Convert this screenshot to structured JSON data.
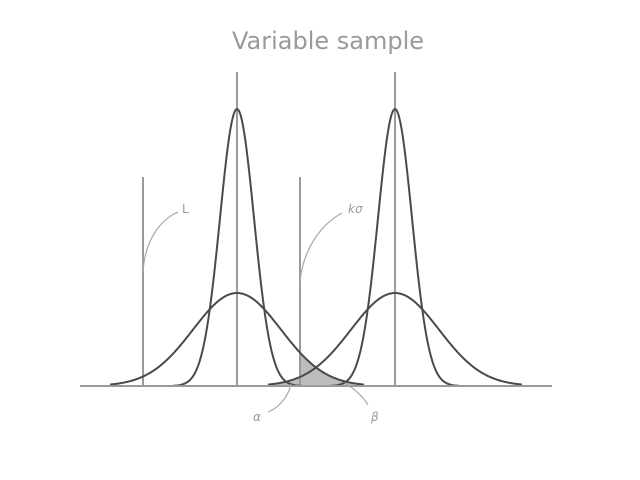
{
  "diagram": {
    "title": "Variable sample",
    "labels": {
      "lower_limit": "L",
      "k_sigma": "kσ",
      "alpha": "α",
      "beta": "β"
    },
    "colors": {
      "curve": "#4a4a4a",
      "lines": "#9a9a9a",
      "text": "#9a9a9a",
      "shaded_region": "#bdbdbd"
    }
  }
}
